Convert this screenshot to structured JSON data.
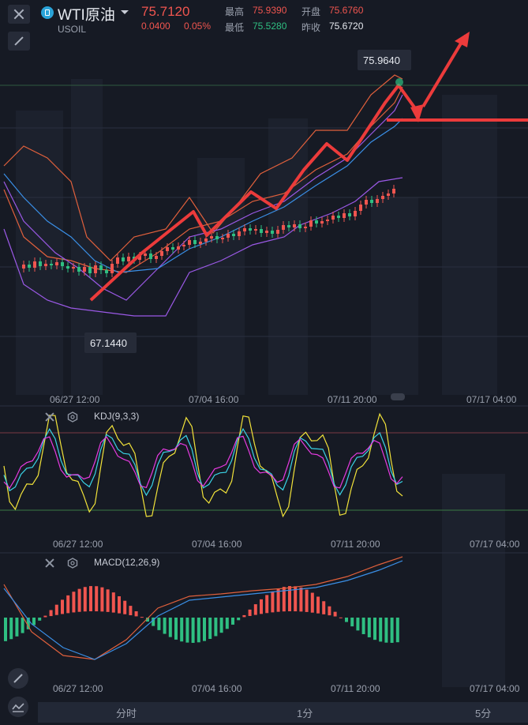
{
  "header": {
    "symbol_name": "WTI原油",
    "symbol_code": "USOIL",
    "price": "75.7120",
    "change": "0.0400",
    "change_pct": "0.05%",
    "high_label": "最高",
    "high_value": "75.9390",
    "open_label": "开盘",
    "open_value": "75.6760",
    "low_label": "最低",
    "low_value": "75.5280",
    "prev_close_label": "昨收",
    "prev_close_value": "75.6720"
  },
  "main_chart": {
    "max_label": "75.9640",
    "min_label": "67.1440",
    "time_axis": [
      "06/27 12:00",
      "07/04 16:00",
      "07/11 20:00",
      "07/17 04:00"
    ]
  },
  "kdj": {
    "label": "KDJ(9,3,3)",
    "time_axis": [
      "06/27 12:00",
      "07/04 16:00",
      "07/11 20:00",
      "07/17 04:00"
    ]
  },
  "macd": {
    "label": "MACD(12,26,9)",
    "time_axis": [
      "06/27 12:00",
      "07/04 16:00",
      "07/11 20:00",
      "07/17 04:00"
    ]
  },
  "tabs": [
    "分时",
    "1分",
    "5分"
  ],
  "colors": {
    "up": "#f0554f",
    "down": "#2fbf82",
    "background": "#161a24",
    "bollinger": "#e0603c",
    "ma_blue": "#3a8fe6",
    "ma_purple": "#9b59e6",
    "kdj_yellow": "#f2e33a",
    "kdj_cyan": "#3ad4e6",
    "kdj_magenta": "#e63ae0"
  }
}
